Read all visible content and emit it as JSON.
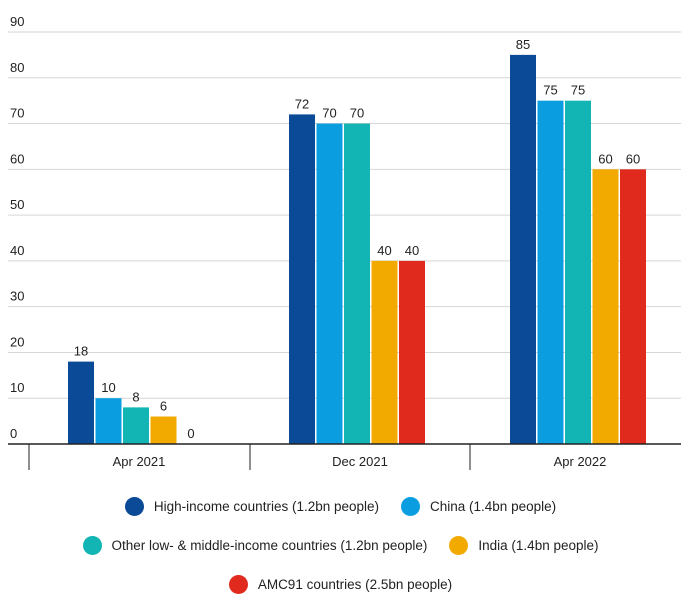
{
  "chart_data": {
    "type": "bar",
    "categories": [
      "Apr 2021",
      "Dec 2021",
      "Apr 2022"
    ],
    "series": [
      {
        "name": "High-income countries (1.2bn people)",
        "color": "#0a4a96",
        "values": [
          18,
          72,
          85
        ]
      },
      {
        "name": "China (1.4bn people)",
        "color": "#0a9ee0",
        "values": [
          10,
          70,
          75
        ]
      },
      {
        "name": "Other low- & middle-income countries (1.2bn people)",
        "color": "#12b4b4",
        "values": [
          8,
          70,
          75
        ]
      },
      {
        "name": "India (1.4bn people)",
        "color": "#f2a900",
        "values": [
          6,
          40,
          60
        ]
      },
      {
        "name": "AMC91 countries (2.5bn people)",
        "color": "#e02a1e",
        "values": [
          0,
          40,
          60
        ]
      }
    ],
    "yticks": [
      0,
      10,
      20,
      30,
      40,
      50,
      60,
      70,
      80,
      90
    ],
    "ylim": [
      0,
      90
    ],
    "grid": true,
    "legend_position": "bottom"
  }
}
